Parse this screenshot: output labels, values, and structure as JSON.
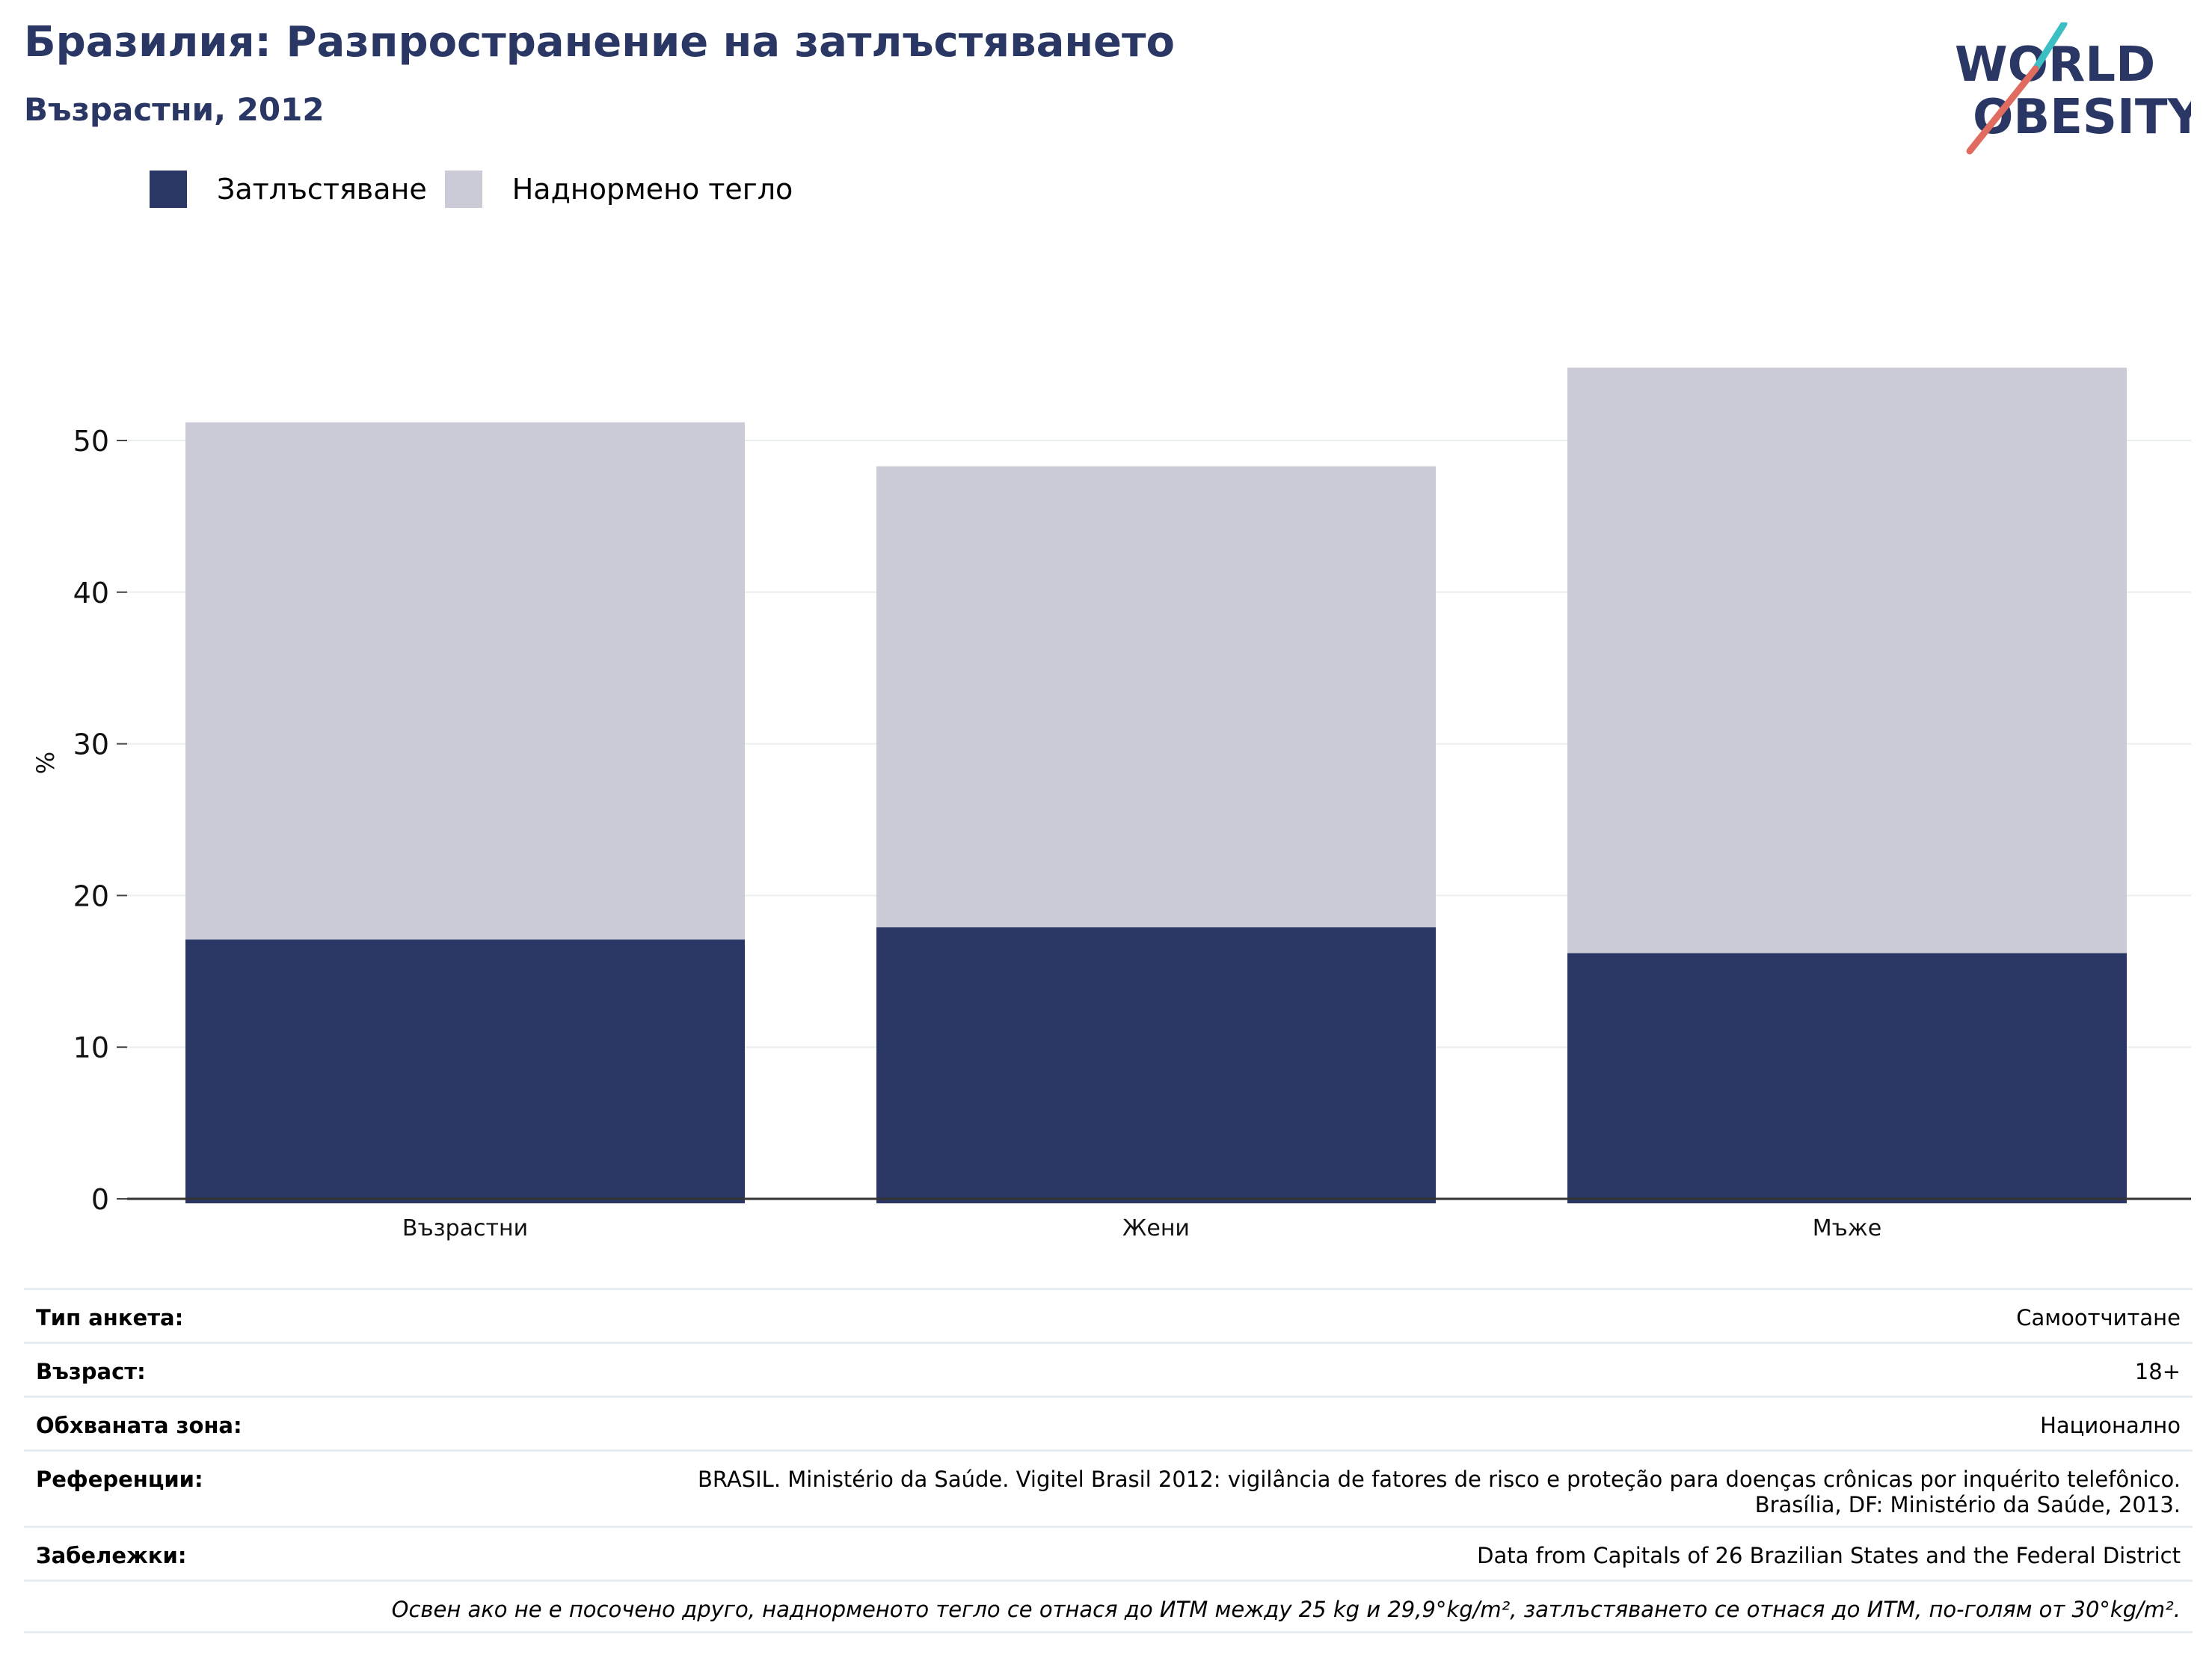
{
  "title": "Бразилия: Разпространение на затлъстяването",
  "subtitle": "Възрастни, 2012",
  "logo": {
    "line1": "WORLD",
    "line2": "OBESITY",
    "color_text": "#2a3764",
    "color_teal": "#3bbfc4",
    "color_red": "#e06b5f"
  },
  "legend": [
    {
      "label": "Затлъстяване",
      "color": "#2a3764"
    },
    {
      "label": "Наднормено тегло",
      "color": "#cacbd7"
    }
  ],
  "chart_data": {
    "type": "bar",
    "stacked": true,
    "categories": [
      "Възрастни",
      "Жени",
      "Мъже"
    ],
    "series": [
      {
        "name": "Затлъстяване",
        "values": [
          17.1,
          17.9,
          16.2
        ],
        "color": "#2a3764"
      },
      {
        "name": "Наднормено тегло",
        "values": [
          34.1,
          30.4,
          38.6
        ],
        "color": "#cacbd7"
      }
    ],
    "ylabel": "%",
    "ylim": [
      0,
      60
    ],
    "yticks": [
      0,
      10,
      20,
      30,
      40,
      50
    ],
    "grid": true,
    "legend_position": "top-left"
  },
  "info": {
    "survey_type": {
      "key": "Тип анкета:",
      "value": "Самоотчитане"
    },
    "age": {
      "key": "Възраст:",
      "value": "18+"
    },
    "area": {
      "key": "Обхваната зона:",
      "value": "Национално"
    },
    "references": {
      "key": "Референции:",
      "line1": "BRASIL. Ministério da Saúde. Vigitel Brasil 2012: vigilância de fatores de risco e proteção para doenças crônicas por inquérito telefônico.",
      "line2": "Brasília, DF: Ministério da Saúde, 2013."
    },
    "notes": {
      "key": "Забележки:",
      "value": "Data from Capitals of 26 Brazilian States and the Federal District"
    },
    "footnote": "Освен ако не е посочено друго, наднорменото тегло се отнася до ИТМ между 25 kg и 29,9°kg/m², затлъстяването се отнася до ИТМ, по-голям от 30°kg/m²."
  }
}
